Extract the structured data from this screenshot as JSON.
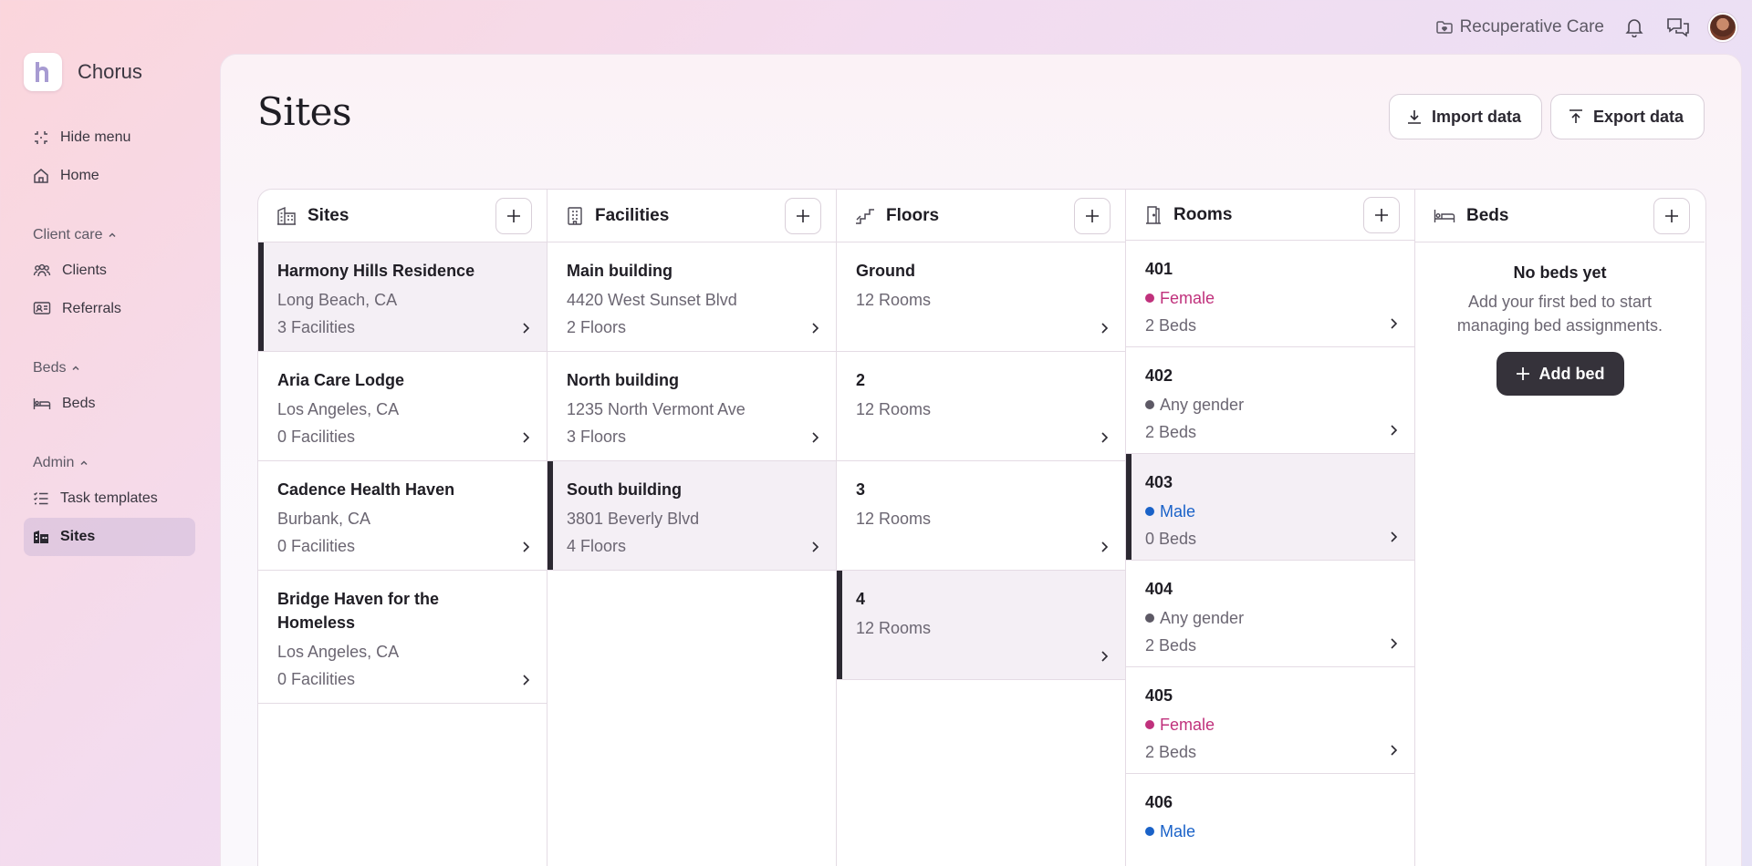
{
  "topbar": {
    "org_name": "Recuperative Care",
    "icons": [
      "folder-heart-icon",
      "bell-icon",
      "chat-icon",
      "avatar"
    ]
  },
  "brand": {
    "name": "Chorus"
  },
  "sidebar": {
    "hide_menu": "Hide menu",
    "home": "Home",
    "sections": [
      {
        "label": "Client care",
        "items": [
          "Clients",
          "Referrals"
        ]
      },
      {
        "label": "Beds",
        "items": [
          "Beds"
        ]
      },
      {
        "label": "Admin",
        "items": [
          "Task templates",
          "Sites"
        ]
      }
    ],
    "active": "Sites"
  },
  "page": {
    "title": "Sites",
    "import_label": "Import data",
    "export_label": "Export data"
  },
  "columns": {
    "sites": {
      "title": "Sites",
      "items": [
        {
          "title": "Harmony Hills Residence",
          "sub": "Long Beach, CA",
          "meta": "3 Facilities",
          "selected": true
        },
        {
          "title": "Aria Care Lodge",
          "sub": "Los Angeles, CA",
          "meta": "0 Facilities"
        },
        {
          "title": "Cadence Health Haven",
          "sub": "Burbank, CA",
          "meta": "0 Facilities"
        },
        {
          "title": "Bridge Haven for the Homeless",
          "sub": "Los Angeles, CA",
          "meta": "0 Facilities"
        }
      ]
    },
    "facilities": {
      "title": "Facilities",
      "items": [
        {
          "title": "Main building",
          "sub": "4420 West Sunset Blvd",
          "meta": "2 Floors"
        },
        {
          "title": "North building",
          "sub": "1235 North Vermont Ave",
          "meta": "3 Floors"
        },
        {
          "title": "South building",
          "sub": "3801 Beverly Blvd",
          "meta": "4 Floors",
          "selected": true
        }
      ]
    },
    "floors": {
      "title": "Floors",
      "items": [
        {
          "title": "Ground",
          "sub": "12 Rooms"
        },
        {
          "title": "2",
          "sub": "12 Rooms"
        },
        {
          "title": "3",
          "sub": "12 Rooms"
        },
        {
          "title": "4",
          "sub": "12 Rooms",
          "selected": true
        }
      ]
    },
    "rooms": {
      "title": "Rooms",
      "items": [
        {
          "title": "401",
          "gender": "Female",
          "meta": "2 Beds"
        },
        {
          "title": "402",
          "gender": "Any gender",
          "meta": "2 Beds"
        },
        {
          "title": "403",
          "gender": "Male",
          "meta": "0 Beds",
          "selected": true
        },
        {
          "title": "404",
          "gender": "Any gender",
          "meta": "2 Beds"
        },
        {
          "title": "405",
          "gender": "Female",
          "meta": "2 Beds"
        },
        {
          "title": "406",
          "gender": "Male",
          "meta": ""
        }
      ]
    },
    "beds": {
      "title": "Beds",
      "empty_title": "No beds yet",
      "empty_desc": "Add your first bed to start managing bed assignments.",
      "add_label": "Add bed"
    }
  },
  "colors": {
    "female": "#c0317c",
    "male": "#1a62c8",
    "any": "#5d5965",
    "selected_bar": "#2b2831"
  }
}
